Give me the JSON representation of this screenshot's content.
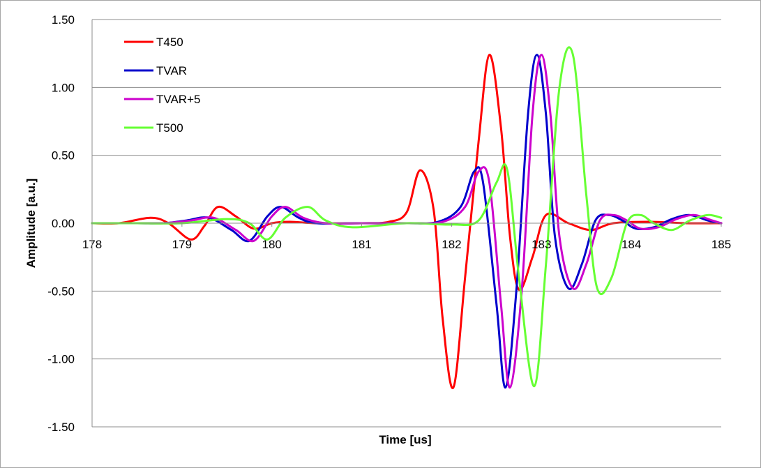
{
  "chart_data": {
    "type": "line",
    "title": "",
    "xlabel": "Time [us]",
    "ylabel": "Amplitude [a.u.]",
    "xlim": [
      178,
      185
    ],
    "ylim": [
      -1.5,
      1.5
    ],
    "xticks": [
      "178",
      "179",
      "180",
      "181",
      "182",
      "183",
      "184",
      "185"
    ],
    "yticks": [
      "1.50",
      "1.00",
      "0.50",
      "0.00",
      "-0.50",
      "-1.00",
      "-1.50"
    ],
    "grid": "horizontal",
    "legend_position": "top-left",
    "series": [
      {
        "name": "T450",
        "color": "#ff0000",
        "x": [
          178.0,
          178.3,
          178.65,
          178.85,
          179.1,
          179.25,
          179.4,
          179.6,
          179.8,
          180.0,
          180.2,
          180.5,
          181.0,
          181.3,
          181.5,
          181.65,
          181.8,
          181.9,
          182.02,
          182.15,
          182.3,
          182.42,
          182.55,
          182.65,
          182.75,
          182.9,
          183.05,
          183.3,
          183.55,
          183.8,
          184.2,
          184.6,
          185.0
        ],
        "y": [
          0.0,
          0.0,
          0.04,
          0.0,
          -0.12,
          -0.02,
          0.12,
          0.05,
          -0.04,
          0.0,
          0.01,
          0.0,
          0.0,
          0.01,
          0.08,
          0.39,
          0.1,
          -0.7,
          -1.21,
          -0.4,
          0.6,
          1.24,
          0.7,
          -0.1,
          -0.49,
          -0.25,
          0.06,
          0.0,
          -0.05,
          0.0,
          0.01,
          0.0,
          0.0
        ]
      },
      {
        "name": "TVAR",
        "color": "#0000cc",
        "x": [
          178.0,
          178.5,
          178.8,
          179.05,
          179.3,
          179.55,
          179.75,
          179.95,
          180.1,
          180.3,
          180.5,
          181.0,
          181.5,
          181.85,
          182.1,
          182.25,
          182.35,
          182.5,
          182.6,
          182.72,
          182.85,
          182.95,
          183.05,
          183.15,
          183.3,
          183.45,
          183.6,
          183.75,
          183.9,
          184.05,
          184.25,
          184.45,
          184.65,
          184.85,
          185.0
        ],
        "y": [
          0.0,
          0.0,
          0.0,
          0.02,
          0.04,
          -0.05,
          -0.13,
          0.05,
          0.12,
          0.04,
          0.0,
          0.0,
          0.0,
          0.01,
          0.12,
          0.38,
          0.3,
          -0.6,
          -1.21,
          -0.5,
          0.8,
          1.24,
          0.8,
          -0.1,
          -0.48,
          -0.3,
          0.02,
          0.06,
          0.02,
          -0.04,
          -0.03,
          0.03,
          0.06,
          0.02,
          0.0
        ]
      },
      {
        "name": "TVAR+5",
        "color": "#cc00cc",
        "x": [
          178.0,
          178.5,
          178.8,
          179.1,
          179.35,
          179.6,
          179.8,
          180.0,
          180.15,
          180.35,
          180.6,
          181.0,
          181.5,
          181.9,
          182.15,
          182.3,
          182.42,
          182.55,
          182.65,
          182.78,
          182.9,
          183.0,
          183.1,
          183.2,
          183.35,
          183.5,
          183.65,
          183.8,
          183.95,
          184.1,
          184.3,
          184.5,
          184.7,
          184.9,
          185.0
        ],
        "y": [
          0.0,
          0.0,
          0.0,
          0.02,
          0.04,
          -0.05,
          -0.13,
          0.05,
          0.12,
          0.04,
          0.0,
          0.0,
          0.0,
          0.01,
          0.12,
          0.38,
          0.3,
          -0.6,
          -1.21,
          -0.5,
          0.8,
          1.24,
          0.8,
          -0.1,
          -0.48,
          -0.3,
          0.02,
          0.06,
          0.02,
          -0.04,
          -0.03,
          0.03,
          0.06,
          0.02,
          0.0
        ]
      },
      {
        "name": "T500",
        "color": "#66ff33",
        "x": [
          178.0,
          178.5,
          179.0,
          179.5,
          179.75,
          179.95,
          180.15,
          180.4,
          180.6,
          180.9,
          181.5,
          182.0,
          182.3,
          182.5,
          182.62,
          182.75,
          182.92,
          183.05,
          183.2,
          183.35,
          183.5,
          183.62,
          183.78,
          183.95,
          184.1,
          184.25,
          184.45,
          184.65,
          184.85,
          185.0
        ],
        "y": [
          0.0,
          0.0,
          0.0,
          0.03,
          0.0,
          -0.12,
          0.04,
          0.12,
          0.02,
          -0.03,
          0.0,
          -0.01,
          0.02,
          0.3,
          0.39,
          -0.4,
          -1.2,
          -0.3,
          1.0,
          1.24,
          0.2,
          -0.48,
          -0.4,
          0.0,
          0.06,
          0.0,
          -0.05,
          0.02,
          0.06,
          0.04
        ]
      }
    ]
  }
}
